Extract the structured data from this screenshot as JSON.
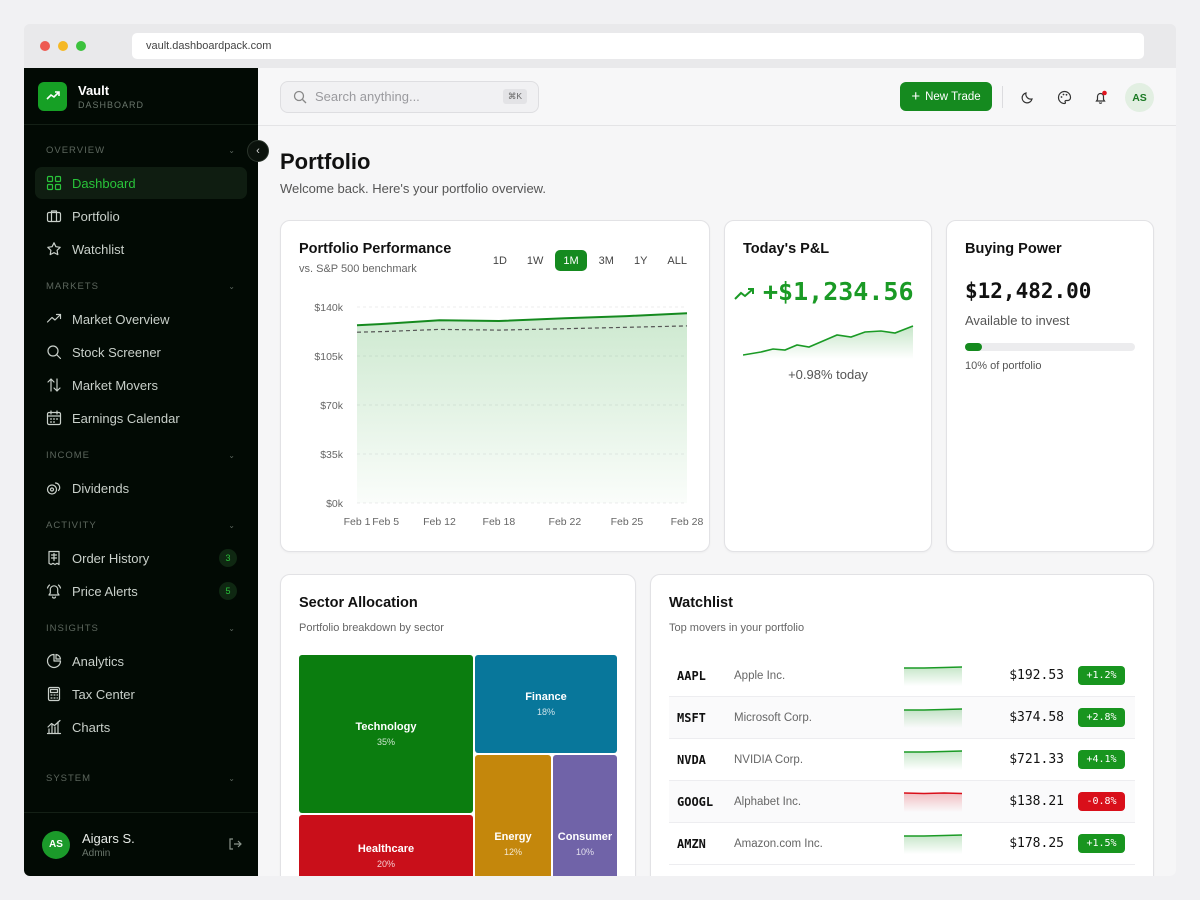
{
  "browser": {
    "url": "vault.dashboardpack.com"
  },
  "brand": {
    "name": "Vault",
    "sub": "DASHBOARD"
  },
  "sidebar": {
    "sections": [
      {
        "label": "OVERVIEW",
        "items": [
          {
            "label": "Dashboard",
            "icon": "grid-icon",
            "active": true
          },
          {
            "label": "Portfolio",
            "icon": "briefcase-icon"
          },
          {
            "label": "Watchlist",
            "icon": "star-icon"
          }
        ]
      },
      {
        "label": "MARKETS",
        "items": [
          {
            "label": "Market Overview",
            "icon": "trend-up-icon"
          },
          {
            "label": "Stock Screener",
            "icon": "search-icon"
          },
          {
            "label": "Market Movers",
            "icon": "arrows-updown-icon"
          },
          {
            "label": "Earnings Calendar",
            "icon": "calendar-icon"
          }
        ]
      },
      {
        "label": "INCOME",
        "items": [
          {
            "label": "Dividends",
            "icon": "coins-icon"
          }
        ]
      },
      {
        "label": "ACTIVITY",
        "items": [
          {
            "label": "Order History",
            "icon": "receipt-icon",
            "badge": "3"
          },
          {
            "label": "Price Alerts",
            "icon": "bell-icon",
            "badge": "5"
          }
        ]
      },
      {
        "label": "INSIGHTS",
        "items": [
          {
            "label": "Analytics",
            "icon": "pie-icon"
          },
          {
            "label": "Tax Center",
            "icon": "calculator-icon"
          },
          {
            "label": "Charts",
            "icon": "bar-chart-icon"
          }
        ]
      },
      {
        "label": "SYSTEM",
        "items": []
      }
    ],
    "user": {
      "initials": "AS",
      "name": "Aigars S.",
      "role": "Admin"
    }
  },
  "topbar": {
    "search_placeholder": "Search anything...",
    "search_shortcut": "⌘K",
    "new_trade_label": "New Trade",
    "avatar_initials": "AS"
  },
  "page": {
    "title": "Portfolio",
    "subtitle": "Welcome back. Here's your portfolio overview."
  },
  "performance": {
    "title": "Portfolio Performance",
    "subtitle": "vs. S&P 500 benchmark",
    "ranges": [
      "1D",
      "1W",
      "1M",
      "3M",
      "1Y",
      "ALL"
    ],
    "active_range": "1M"
  },
  "pnl": {
    "title": "Today's P&L",
    "value": "+$1,234.56",
    "today": "+0.98% today"
  },
  "buying_power": {
    "title": "Buying Power",
    "value": "$12,482.00",
    "available": "Available to invest",
    "pct_label": "10% of portfolio",
    "fraction": 0.1
  },
  "sector": {
    "title": "Sector Allocation",
    "subtitle": "Portfolio breakdown by sector",
    "tiles": [
      {
        "name": "Technology",
        "pct": "35%",
        "color": "#0b7d0f"
      },
      {
        "name": "Finance",
        "pct": "18%",
        "color": "#08779b"
      },
      {
        "name": "Healthcare",
        "pct": "20%",
        "color": "#c90f1a"
      },
      {
        "name": "Energy",
        "pct": "12%",
        "color": "#c4870c"
      },
      {
        "name": "Consumer",
        "pct": "10%",
        "color": "#7063a8"
      }
    ]
  },
  "watchlist": {
    "title": "Watchlist",
    "subtitle": "Top movers in your portfolio",
    "rows": [
      {
        "symbol": "AAPL",
        "name": "Apple Inc.",
        "price": "$192.53",
        "change": "+1.2%",
        "up": true
      },
      {
        "symbol": "MSFT",
        "name": "Microsoft Corp.",
        "price": "$374.58",
        "change": "+2.8%",
        "up": true
      },
      {
        "symbol": "NVDA",
        "name": "NVIDIA Corp.",
        "price": "$721.33",
        "change": "+4.1%",
        "up": true
      },
      {
        "symbol": "GOOGL",
        "name": "Alphabet Inc.",
        "price": "$138.21",
        "change": "-0.8%",
        "up": false
      },
      {
        "symbol": "AMZN",
        "name": "Amazon.com Inc.",
        "price": "$178.25",
        "change": "+1.5%",
        "up": true
      }
    ]
  },
  "colors": {
    "accent": "#158a1f",
    "up": "#1a9a25",
    "down": "#d90f1a",
    "sidebar_bg": "#020a04"
  },
  "chart_data": {
    "type": "area",
    "x": [
      "Feb 1",
      "Feb 5",
      "Feb 12",
      "Feb 18",
      "Feb 22",
      "Feb 25",
      "Feb 28"
    ],
    "yticks": [
      "$140k",
      "$105k",
      "$70k",
      "$35k",
      "$0k"
    ],
    "ylim": [
      0,
      140000
    ],
    "series": [
      {
        "values": [
          127000,
          128000,
          130500,
          130000,
          132000,
          133500,
          135500
        ]
      },
      {
        "values": [
          122000,
          122500,
          124000,
          123500,
          124500,
          125500,
          126500
        ]
      }
    ]
  }
}
